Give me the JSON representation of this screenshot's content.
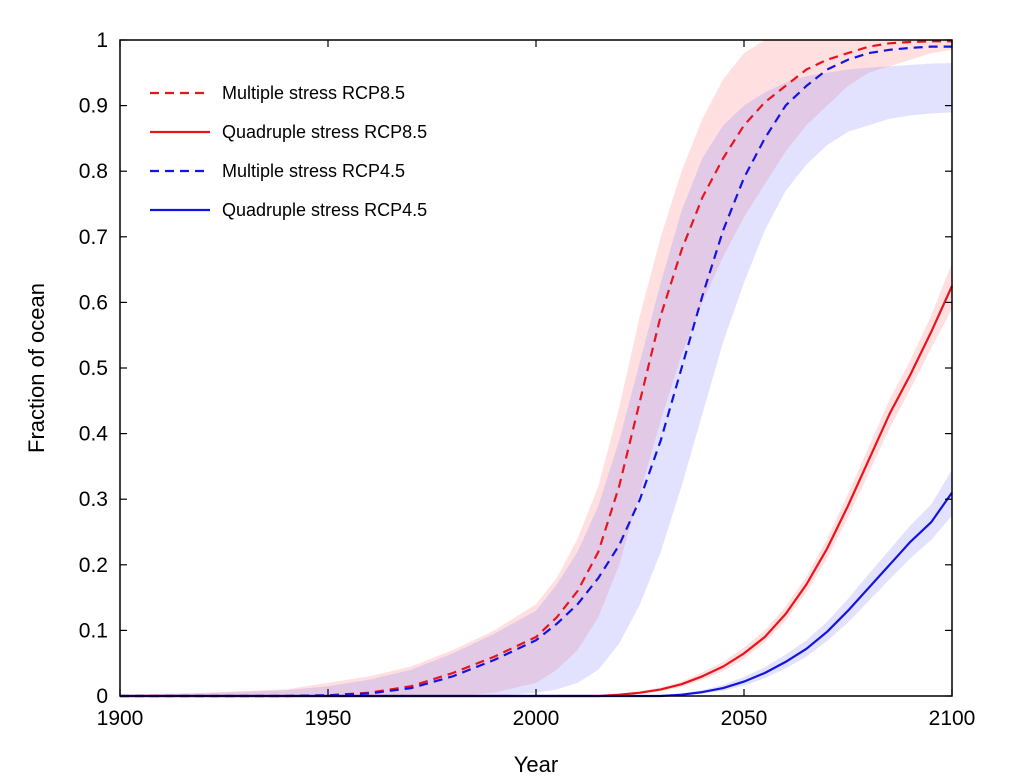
{
  "chart_data": {
    "type": "line",
    "title": "",
    "xlabel": "Year",
    "ylabel": "Fraction of ocean",
    "xlim": [
      1900,
      2100
    ],
    "ylim": [
      0,
      1
    ],
    "xticks": [
      1900,
      1950,
      2000,
      2050,
      2100
    ],
    "yticks": [
      0,
      0.1,
      0.2,
      0.3,
      0.4,
      0.5,
      0.6,
      0.7,
      0.8,
      0.9,
      1
    ],
    "grid": false,
    "legend_position": "top-left",
    "series": [
      {
        "name": "Multiple stress RCP8.5",
        "color": "#e8141c",
        "line_style": "dashed",
        "x": [
          1900,
          1920,
          1940,
          1950,
          1960,
          1970,
          1980,
          1990,
          2000,
          2005,
          2010,
          2015,
          2020,
          2025,
          2030,
          2035,
          2040,
          2045,
          2050,
          2055,
          2060,
          2065,
          2070,
          2075,
          2080,
          2085,
          2090,
          2095,
          2100
        ],
        "y": [
          0,
          0,
          0,
          0.001,
          0.005,
          0.015,
          0.035,
          0.06,
          0.09,
          0.12,
          0.16,
          0.22,
          0.32,
          0.45,
          0.58,
          0.68,
          0.76,
          0.82,
          0.87,
          0.905,
          0.93,
          0.955,
          0.97,
          0.98,
          0.99,
          0.995,
          0.997,
          0.998,
          0.998
        ],
        "band_lower": [
          0,
          0,
          0,
          0,
          0,
          0,
          0,
          0.005,
          0.02,
          0.04,
          0.07,
          0.12,
          0.2,
          0.31,
          0.42,
          0.52,
          0.6,
          0.67,
          0.73,
          0.78,
          0.83,
          0.87,
          0.9,
          0.93,
          0.95,
          0.96,
          0.97,
          0.98,
          0.985
        ],
        "band_upper": [
          0.002,
          0.005,
          0.01,
          0.02,
          0.03,
          0.045,
          0.07,
          0.1,
          0.14,
          0.18,
          0.24,
          0.32,
          0.44,
          0.58,
          0.7,
          0.8,
          0.88,
          0.94,
          0.98,
          1,
          1,
          1,
          1,
          1,
          1,
          1,
          1,
          1,
          1
        ]
      },
      {
        "name": "Quadruple stress RCP8.5",
        "color": "#e8141c",
        "line_style": "solid",
        "x": [
          1900,
          1950,
          2000,
          2015,
          2020,
          2025,
          2030,
          2035,
          2040,
          2045,
          2050,
          2055,
          2060,
          2065,
          2070,
          2075,
          2080,
          2085,
          2090,
          2095,
          2100
        ],
        "y": [
          0,
          0,
          0,
          0,
          0.002,
          0.005,
          0.01,
          0.018,
          0.03,
          0.045,
          0.065,
          0.09,
          0.125,
          0.17,
          0.225,
          0.29,
          0.36,
          0.43,
          0.49,
          0.555,
          0.625
        ],
        "band_lower": [
          0,
          0,
          0,
          0,
          0.001,
          0.003,
          0.007,
          0.014,
          0.025,
          0.038,
          0.057,
          0.082,
          0.115,
          0.158,
          0.21,
          0.272,
          0.34,
          0.408,
          0.468,
          0.53,
          0.59
        ],
        "band_upper": [
          0,
          0,
          0,
          0.001,
          0.003,
          0.007,
          0.013,
          0.022,
          0.036,
          0.052,
          0.074,
          0.1,
          0.136,
          0.182,
          0.24,
          0.308,
          0.38,
          0.452,
          0.512,
          0.58,
          0.66
        ]
      },
      {
        "name": "Multiple stress RCP4.5",
        "color": "#1414e0",
        "line_style": "dashed",
        "x": [
          1900,
          1920,
          1940,
          1950,
          1960,
          1970,
          1980,
          1990,
          2000,
          2005,
          2010,
          2015,
          2020,
          2025,
          2030,
          2035,
          2040,
          2045,
          2050,
          2055,
          2060,
          2065,
          2070,
          2075,
          2080,
          2085,
          2090,
          2095,
          2100
        ],
        "y": [
          0,
          0,
          0,
          0.001,
          0.004,
          0.012,
          0.03,
          0.055,
          0.085,
          0.11,
          0.14,
          0.18,
          0.23,
          0.3,
          0.39,
          0.5,
          0.61,
          0.71,
          0.79,
          0.85,
          0.9,
          0.93,
          0.955,
          0.97,
          0.98,
          0.985,
          0.988,
          0.99,
          0.99
        ],
        "band_lower": [
          0,
          0,
          0,
          0,
          0,
          0,
          0,
          0,
          0.005,
          0.01,
          0.02,
          0.04,
          0.08,
          0.14,
          0.22,
          0.32,
          0.43,
          0.54,
          0.63,
          0.71,
          0.77,
          0.81,
          0.84,
          0.86,
          0.87,
          0.88,
          0.885,
          0.888,
          0.89
        ],
        "band_upper": [
          0.001,
          0.004,
          0.009,
          0.015,
          0.025,
          0.04,
          0.065,
          0.095,
          0.13,
          0.17,
          0.22,
          0.29,
          0.39,
          0.51,
          0.63,
          0.74,
          0.82,
          0.87,
          0.9,
          0.92,
          0.935,
          0.945,
          0.95,
          0.955,
          0.958,
          0.96,
          0.962,
          0.964,
          0.965
        ]
      },
      {
        "name": "Quadruple stress RCP4.5",
        "color": "#1414e0",
        "line_style": "solid",
        "x": [
          1900,
          1950,
          2000,
          2030,
          2035,
          2040,
          2045,
          2050,
          2055,
          2060,
          2065,
          2070,
          2075,
          2080,
          2085,
          2090,
          2095,
          2100
        ],
        "y": [
          0,
          0,
          0,
          0,
          0.002,
          0.006,
          0.012,
          0.022,
          0.035,
          0.052,
          0.072,
          0.098,
          0.13,
          0.165,
          0.2,
          0.235,
          0.265,
          0.31
        ],
        "band_lower": [
          0,
          0,
          0,
          0,
          0.001,
          0.004,
          0.008,
          0.016,
          0.027,
          0.042,
          0.06,
          0.084,
          0.112,
          0.145,
          0.178,
          0.21,
          0.238,
          0.275
        ],
        "band_upper": [
          0,
          0,
          0,
          0.001,
          0.004,
          0.009,
          0.017,
          0.029,
          0.044,
          0.063,
          0.085,
          0.113,
          0.148,
          0.186,
          0.223,
          0.26,
          0.292,
          0.345
        ]
      }
    ]
  }
}
